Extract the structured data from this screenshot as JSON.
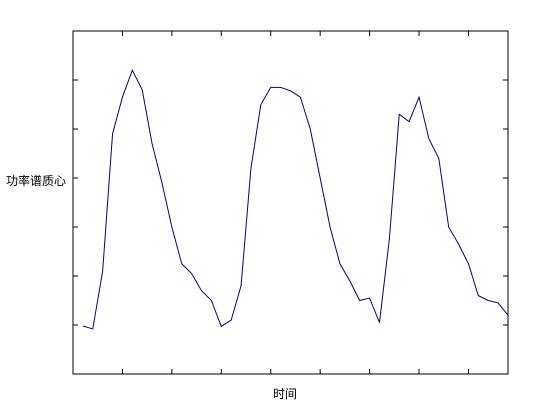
{
  "chart_data": {
    "type": "line",
    "title": "",
    "xlabel": "时间",
    "ylabel": "功率谱质心",
    "xlim": [
      0,
      44
    ],
    "ylim": [
      0,
      7
    ],
    "x_ticks": [
      5,
      10,
      15,
      20,
      25,
      30,
      35,
      40
    ],
    "y_ticks": [
      1,
      2,
      3,
      4,
      5,
      6,
      7
    ],
    "tick_labels_shown": false,
    "grid": false,
    "legend": "none",
    "line_color": "#00008b",
    "series": [
      {
        "values": [
          [
            1,
            0.98
          ],
          [
            2,
            0.92
          ],
          [
            3,
            2.1
          ],
          [
            4,
            4.9
          ],
          [
            5,
            5.65
          ],
          [
            6,
            6.2
          ],
          [
            7,
            5.8
          ],
          [
            8,
            4.7
          ],
          [
            9,
            3.9
          ],
          [
            10,
            3.0
          ],
          [
            11,
            2.25
          ],
          [
            12,
            2.05
          ],
          [
            13,
            1.7
          ],
          [
            14,
            1.5
          ],
          [
            15,
            0.97
          ],
          [
            16,
            1.1
          ],
          [
            17,
            1.8
          ],
          [
            18,
            4.2
          ],
          [
            19,
            5.5
          ],
          [
            20,
            5.85
          ],
          [
            21,
            5.85
          ],
          [
            22,
            5.78
          ],
          [
            23,
            5.65
          ],
          [
            24,
            5.0
          ],
          [
            25,
            4.0
          ],
          [
            26,
            3.0
          ],
          [
            27,
            2.25
          ],
          [
            28,
            1.9
          ],
          [
            29,
            1.5
          ],
          [
            30,
            1.55
          ],
          [
            31,
            1.05
          ],
          [
            32,
            2.75
          ],
          [
            33,
            5.3
          ],
          [
            34,
            5.15
          ],
          [
            35,
            5.65
          ],
          [
            36,
            4.8
          ],
          [
            37,
            4.4
          ],
          [
            38,
            3.0
          ],
          [
            39,
            2.65
          ],
          [
            40,
            2.25
          ],
          [
            41,
            1.6
          ],
          [
            42,
            1.5
          ],
          [
            43,
            1.45
          ],
          [
            44,
            1.2
          ]
        ]
      }
    ]
  }
}
